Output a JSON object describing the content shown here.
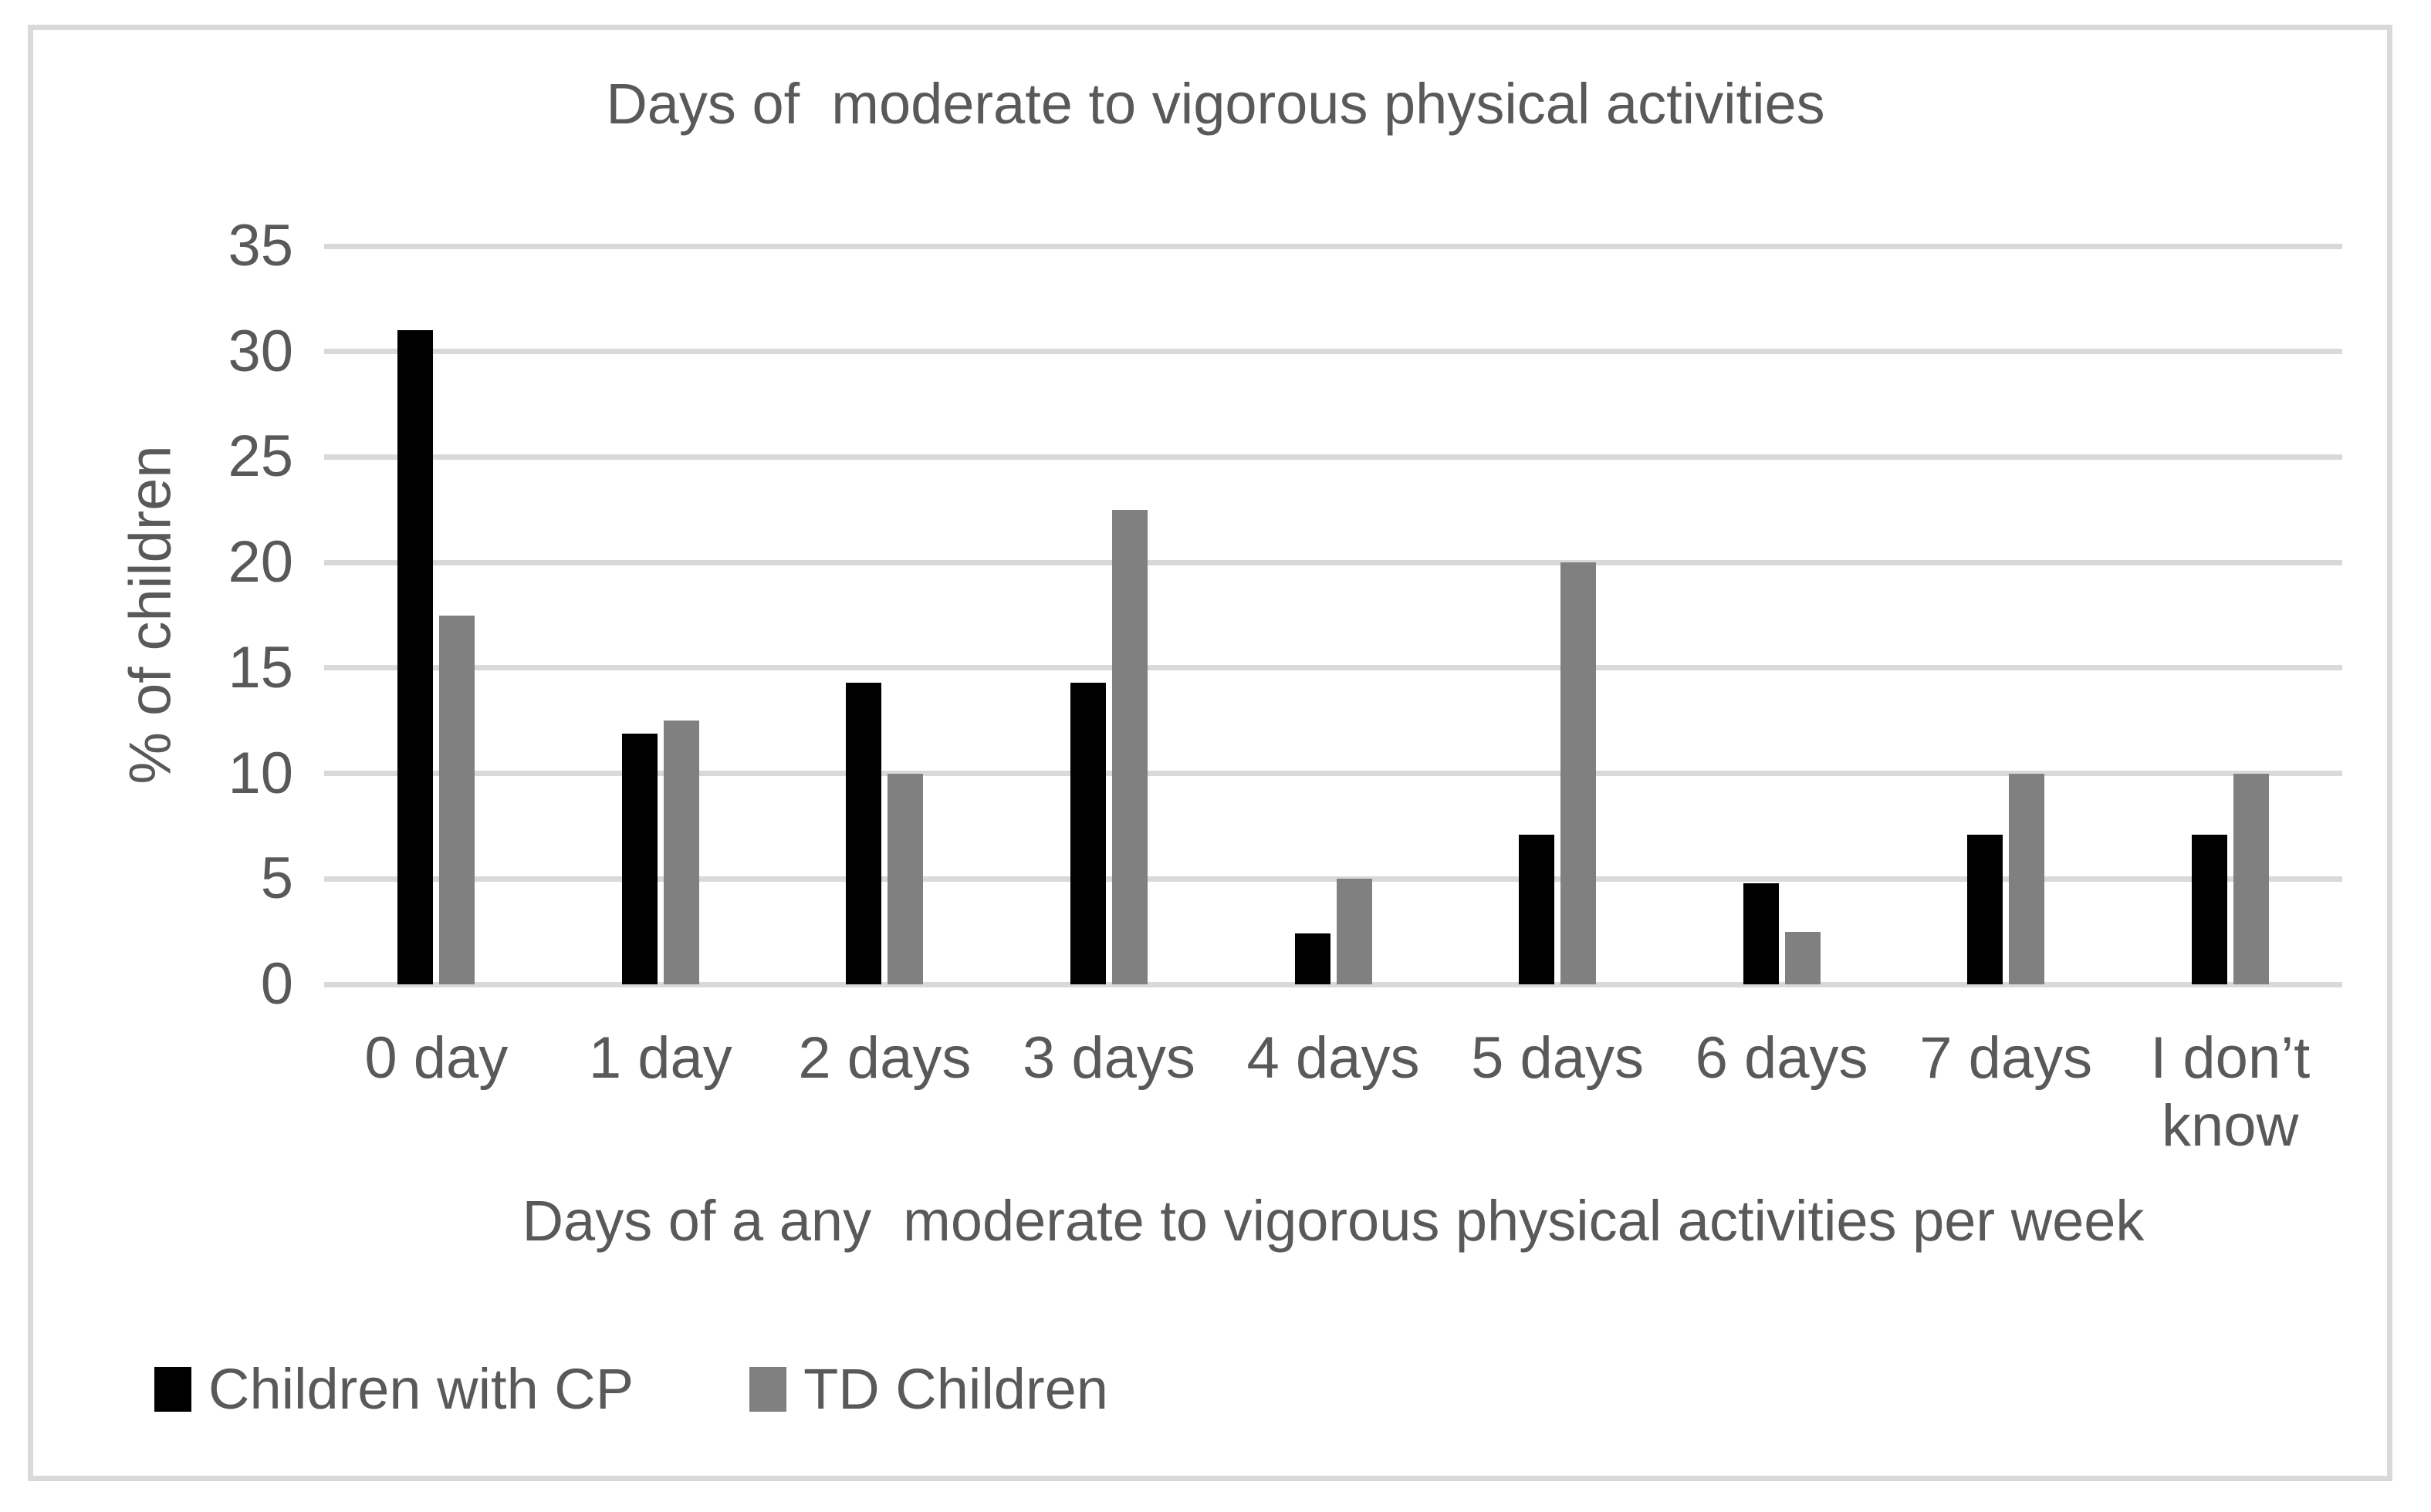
{
  "figure": {
    "border_color": "#d9d9d9",
    "background": "#ffffff",
    "text_color": "#595959",
    "gridline_color": "#d9d9d9"
  },
  "chart_data": {
    "type": "bar",
    "title": "Days of  moderate to vigorous physical activities",
    "xlabel": "Days of a any  moderate to vigorous physical activities per week",
    "ylabel": "% of children",
    "categories": [
      "0 day",
      "1 day",
      "2 days",
      "3 days",
      "4 days",
      "5 days",
      "6 days",
      "7 days",
      "I don’t know"
    ],
    "series": [
      {
        "name": "Children with CP",
        "color": "#000000",
        "values": [
          31,
          11.9,
          14.3,
          14.3,
          2.4,
          7.1,
          4.8,
          7.1,
          7.1
        ]
      },
      {
        "name": "TD Children",
        "color": "#808080",
        "values": [
          17.5,
          12.5,
          10,
          22.5,
          5,
          20,
          2.5,
          10,
          10
        ]
      }
    ],
    "ylim": [
      0,
      35
    ],
    "ytick_step": 5,
    "yticks": [
      "0",
      "5",
      "10",
      "15",
      "20",
      "25",
      "30",
      "35"
    ],
    "grid": "horizontal",
    "legend_position": "bottom-left"
  }
}
